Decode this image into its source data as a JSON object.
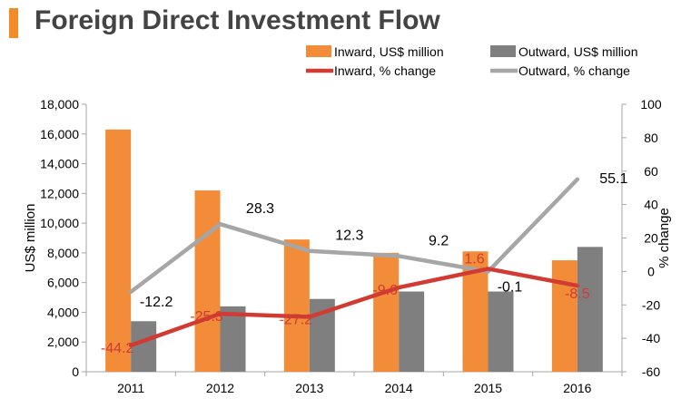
{
  "title": "Foreign Direct Investment Flow",
  "colors": {
    "inward_bar": "#f28c38",
    "outward_bar": "#7f7f7f",
    "inward_line": "#d13b34",
    "outward_line": "#a6a6a6",
    "axis": "#a6a6a6",
    "text": "#000000",
    "accent": "#f28c28"
  },
  "chart_data": {
    "type": "bar",
    "categories": [
      "2011",
      "2012",
      "2013",
      "2014",
      "2015",
      "2016"
    ],
    "series": [
      {
        "name": "Inward, US$ million",
        "kind": "bar",
        "axis": "left",
        "values": [
          16300,
          12200,
          8900,
          8000,
          8100,
          7500
        ]
      },
      {
        "name": "Outward, US$ million",
        "kind": "bar",
        "axis": "left",
        "values": [
          3400,
          4400,
          4900,
          5400,
          5400,
          8400
        ]
      },
      {
        "name": "Inward, % change",
        "kind": "line",
        "axis": "right",
        "values": [
          -44.2,
          -25.3,
          -27.2,
          -9.6,
          1.6,
          -8.5
        ],
        "labels": [
          "-44.2",
          "-25.3",
          "-27.2",
          "-9.6",
          "1.6",
          "-8.5"
        ]
      },
      {
        "name": "Outward, % change",
        "kind": "line",
        "axis": "right",
        "values": [
          -12.2,
          28.3,
          12.3,
          9.2,
          -0.1,
          55.1
        ],
        "labels": [
          "-12.2",
          "28.3",
          "12.3",
          "9.2",
          "-0.1",
          "55.1"
        ]
      }
    ],
    "ylabel": "US$ million",
    "ylim": [
      0,
      18000
    ],
    "y_ticks": [
      "0",
      "2,000",
      "4,000",
      "6,000",
      "8,000",
      "10,000",
      "12,000",
      "14,000",
      "16,000",
      "18,000"
    ],
    "y2label": "% change",
    "y2lim": [
      -60,
      100
    ],
    "y2_ticks": [
      "-60",
      "-40",
      "-20",
      "0",
      "20",
      "40",
      "60",
      "80",
      "100"
    ],
    "legend": "top-right",
    "grid": false
  }
}
